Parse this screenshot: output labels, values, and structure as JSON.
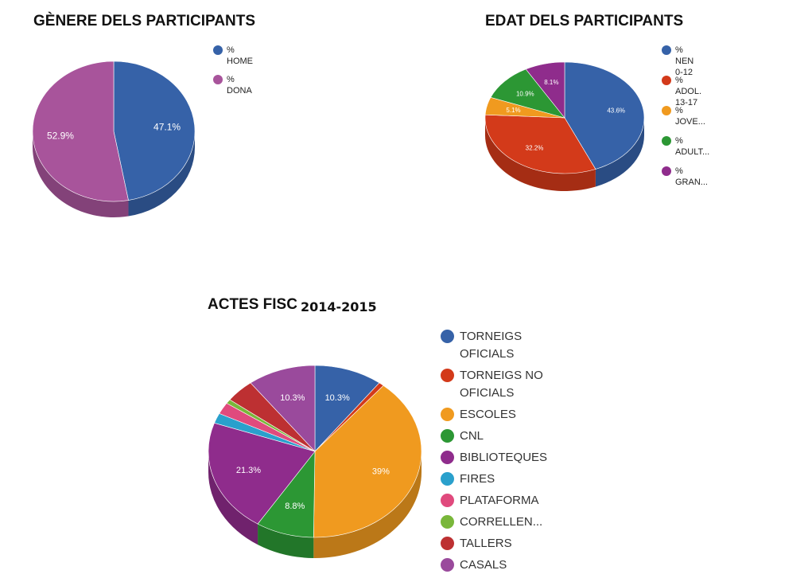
{
  "charts": [
    {
      "title": "GÈNERE DELS PARTICIPANTS",
      "chart_data": {
        "type": "pie",
        "categories": [
          "% HOME",
          "% DONA"
        ],
        "values": [
          47.1,
          52.9
        ],
        "labels": [
          "47.1%",
          "52.9%"
        ],
        "colors": [
          "#3662a8",
          "#a8549b"
        ],
        "legend_placement": "right"
      },
      "legend": [
        {
          "lines": [
            "%",
            "HOME"
          ],
          "color": "#3662a8"
        },
        {
          "lines": [
            "%",
            "DONA"
          ],
          "color": "#a8549b"
        }
      ]
    },
    {
      "title": "EDAT DELS PARTICIPANTS",
      "chart_data": {
        "type": "pie",
        "categories": [
          "% NEN 0-12",
          "% ADOL. 13-17",
          "% JOVE...",
          "% ADULT...",
          "% GRAN..."
        ],
        "values": [
          43.6,
          32.2,
          5.1,
          10.9,
          8.1
        ],
        "labels": [
          "43.6%",
          "32.2%",
          "5.1%",
          "10.9%",
          "8.1%"
        ],
        "colors": [
          "#3662a8",
          "#d33a1a",
          "#f09a1f",
          "#2c9734",
          "#8f2c8c"
        ],
        "legend_placement": "right"
      },
      "legend": [
        {
          "lines": [
            "%",
            "NEN",
            "0-12"
          ],
          "color": "#3662a8"
        },
        {
          "lines": [
            "%",
            "ADOL.",
            "13-17"
          ],
          "color": "#d33a1a"
        },
        {
          "lines": [
            "%",
            "JOVE..."
          ],
          "color": "#f09a1f"
        },
        {
          "lines": [
            "%",
            "ADULT..."
          ],
          "color": "#2c9734"
        },
        {
          "lines": [
            "%",
            "GRAN..."
          ],
          "color": "#8f2c8c"
        }
      ]
    },
    {
      "title": "ACTES FISC",
      "year": "2014-2015",
      "chart_data": {
        "type": "pie",
        "categories": [
          "TORNEIGS OFICIALS",
          "TORNEIGS NO OFICIALS",
          "ESCOLES",
          "CNL",
          "BIBLIOTEQUES",
          "FIRES",
          "PLATAFORMA",
          "CORRELLEN...",
          "TALLERS",
          "CASALS"
        ],
        "values": [
          10.3,
          0.8,
          39,
          8.8,
          21.3,
          1.9,
          2.2,
          0.8,
          4.4,
          10.3
        ],
        "labels": [
          "10.3%",
          "",
          "39%",
          "8.8%",
          "21.3%",
          "",
          "",
          "",
          "",
          "10.3%"
        ],
        "colors": [
          "#3662a8",
          "#d33a1a",
          "#f09a1f",
          "#2c9734",
          "#8f2c8c",
          "#2aa0cc",
          "#e04a7d",
          "#79b73a",
          "#bd3032",
          "#9a4a9c"
        ],
        "legend_placement": "right"
      },
      "legend": [
        {
          "lines": [
            "TORNEIGS",
            "OFICIALS"
          ],
          "color": "#3662a8"
        },
        {
          "lines": [
            "TORNEIGS NO",
            "OFICIALS"
          ],
          "color": "#d33a1a"
        },
        {
          "lines": [
            "ESCOLES"
          ],
          "color": "#f09a1f"
        },
        {
          "lines": [
            "CNL"
          ],
          "color": "#2c9734"
        },
        {
          "lines": [
            "BIBLIOTEQUES"
          ],
          "color": "#8f2c8c"
        },
        {
          "lines": [
            "FIRES"
          ],
          "color": "#2aa0cc"
        },
        {
          "lines": [
            "PLATAFORMA"
          ],
          "color": "#e04a7d"
        },
        {
          "lines": [
            "CORRELLEN..."
          ],
          "color": "#79b73a"
        },
        {
          "lines": [
            "TALLERS"
          ],
          "color": "#bd3032"
        },
        {
          "lines": [
            "CASALS"
          ],
          "color": "#9a4a9c"
        }
      ]
    }
  ]
}
